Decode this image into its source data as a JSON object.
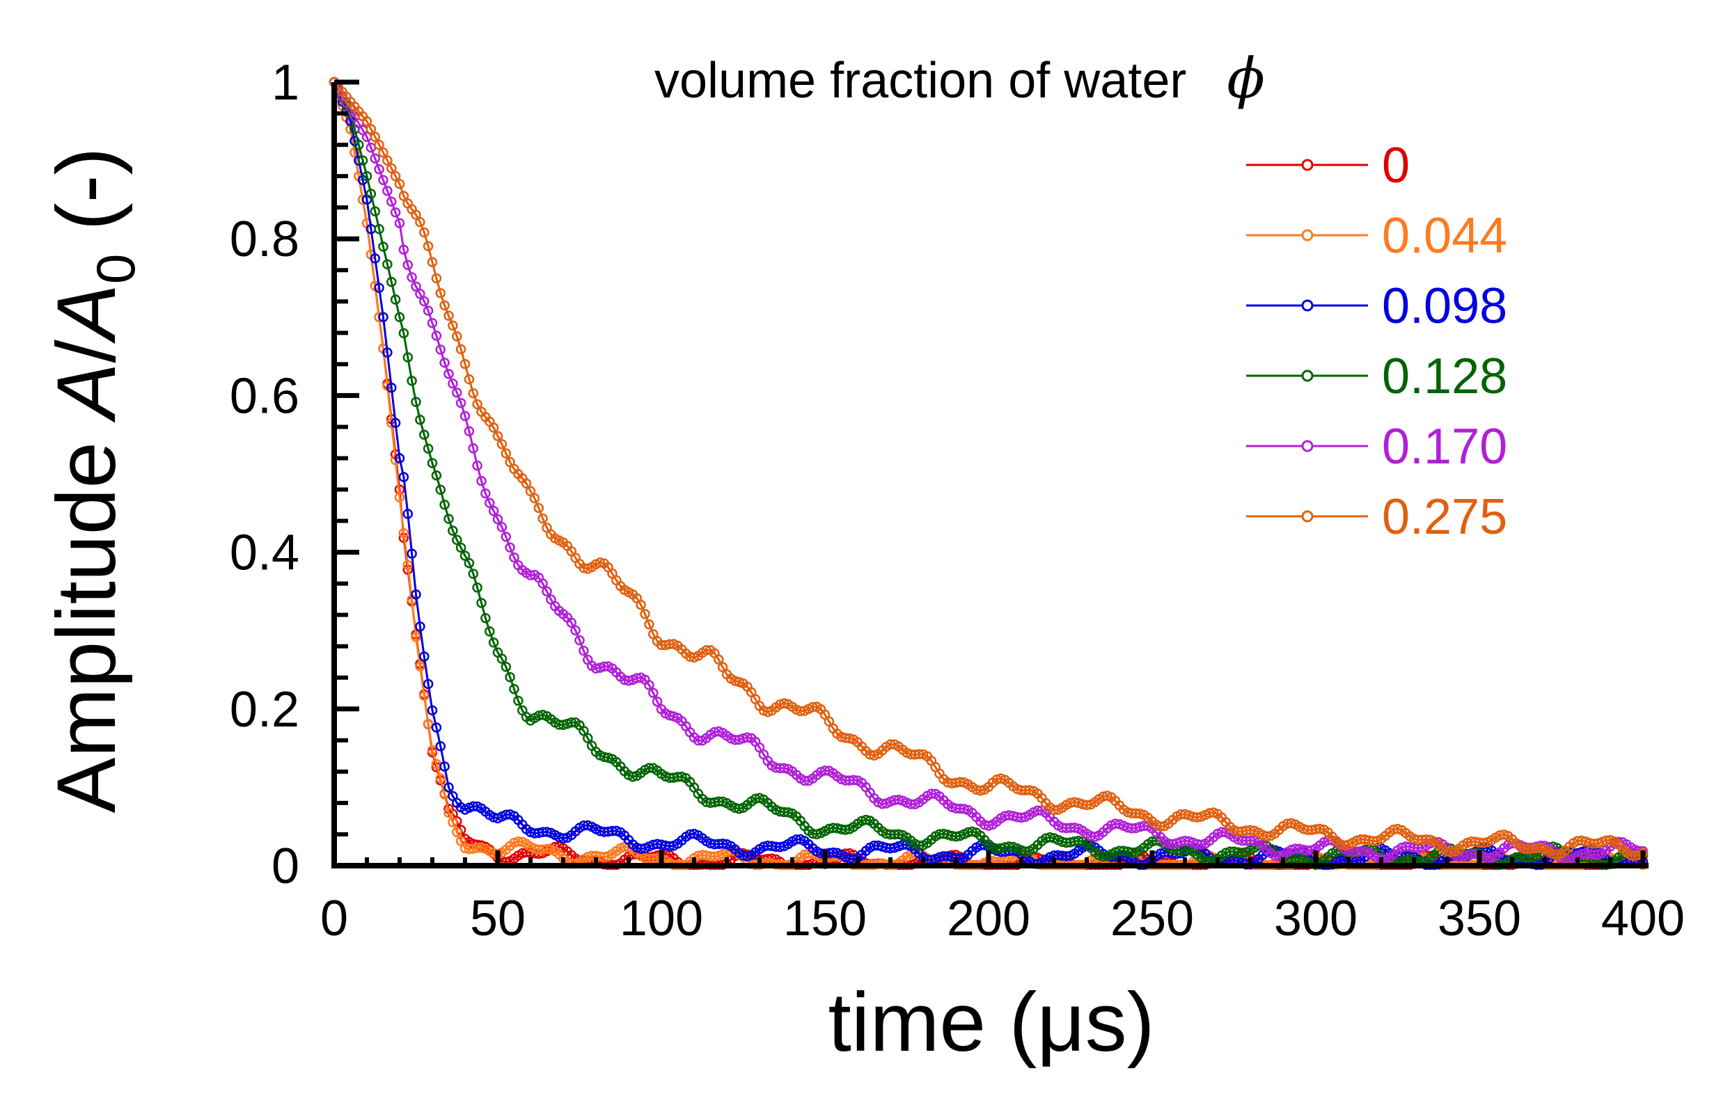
{
  "chart_data": {
    "type": "scatter",
    "title": "",
    "xlabel": "time (μs)",
    "ylabel_prefix": "Amplitude ",
    "ylabel_var": "A",
    "ylabel_slash": "/",
    "ylabel_var2": "A",
    "ylabel_sub": "0",
    "ylabel_suffix": " (-)",
    "xlim": [
      0,
      400
    ],
    "ylim": [
      0,
      1
    ],
    "xticks": [
      0,
      50,
      100,
      150,
      200,
      250,
      300,
      350,
      400
    ],
    "yticks": [
      0,
      0.2,
      0.4,
      0.6,
      0.8,
      1
    ],
    "ytick_labels": [
      "0",
      "0.2",
      "0.4",
      "0.6",
      "0.8",
      "1"
    ],
    "grid": false,
    "legend": {
      "position": "top-right",
      "title_text": "volume fraction of water",
      "title_symbol": "ϕ"
    },
    "series": [
      {
        "name": "0",
        "color": "#e00000",
        "decay": [
          [
            0,
            1.0
          ],
          [
            5,
            0.94
          ],
          [
            10,
            0.82
          ],
          [
            15,
            0.66
          ],
          [
            20,
            0.48
          ],
          [
            25,
            0.3
          ],
          [
            30,
            0.15
          ],
          [
            35,
            0.06
          ],
          [
            40,
            0.03
          ],
          [
            50,
            0.018
          ],
          [
            70,
            0.012
          ],
          [
            100,
            0.006
          ],
          [
            150,
            0.004
          ],
          [
            200,
            0.003
          ],
          [
            300,
            0.002
          ],
          [
            400,
            0.003
          ]
        ]
      },
      {
        "name": "0.044",
        "color": "#ff7a1f",
        "decay": [
          [
            0,
            1.0
          ],
          [
            5,
            0.94
          ],
          [
            10,
            0.82
          ],
          [
            15,
            0.66
          ],
          [
            20,
            0.47
          ],
          [
            25,
            0.28
          ],
          [
            30,
            0.14
          ],
          [
            35,
            0.06
          ],
          [
            40,
            0.032
          ],
          [
            50,
            0.022
          ],
          [
            70,
            0.015
          ],
          [
            100,
            0.01
          ],
          [
            150,
            0.006
          ],
          [
            200,
            0.004
          ],
          [
            300,
            0.003
          ],
          [
            400,
            0.004
          ]
        ]
      },
      {
        "name": "0.098",
        "color": "#0000e0",
        "decay": [
          [
            0,
            1.0
          ],
          [
            5,
            0.95
          ],
          [
            10,
            0.85
          ],
          [
            15,
            0.7
          ],
          [
            20,
            0.52
          ],
          [
            25,
            0.34
          ],
          [
            30,
            0.2
          ],
          [
            35,
            0.11
          ],
          [
            40,
            0.08
          ],
          [
            50,
            0.055
          ],
          [
            70,
            0.045
          ],
          [
            100,
            0.03
          ],
          [
            150,
            0.02
          ],
          [
            200,
            0.015
          ],
          [
            300,
            0.01
          ],
          [
            400,
            0.012
          ]
        ]
      },
      {
        "name": "0.128",
        "color": "#006400",
        "decay": [
          [
            0,
            1.0
          ],
          [
            5,
            0.96
          ],
          [
            10,
            0.88
          ],
          [
            20,
            0.7
          ],
          [
            30,
            0.52
          ],
          [
            40,
            0.38
          ],
          [
            50,
            0.27
          ],
          [
            60,
            0.2
          ],
          [
            80,
            0.15
          ],
          [
            100,
            0.11
          ],
          [
            120,
            0.085
          ],
          [
            150,
            0.05
          ],
          [
            200,
            0.03
          ],
          [
            250,
            0.02
          ],
          [
            300,
            0.012
          ],
          [
            400,
            0.012
          ]
        ]
      },
      {
        "name": "0.170",
        "color": "#b020d8",
        "decay": [
          [
            0,
            1.0
          ],
          [
            10,
            0.93
          ],
          [
            20,
            0.82
          ],
          [
            30,
            0.68
          ],
          [
            40,
            0.56
          ],
          [
            50,
            0.45
          ],
          [
            60,
            0.36
          ],
          [
            80,
            0.27
          ],
          [
            100,
            0.2
          ],
          [
            120,
            0.16
          ],
          [
            150,
            0.11
          ],
          [
            180,
            0.08
          ],
          [
            200,
            0.065
          ],
          [
            250,
            0.04
          ],
          [
            300,
            0.02
          ],
          [
            400,
            0.018
          ]
        ]
      },
      {
        "name": "0.275",
        "color": "#e06010",
        "decay": [
          [
            0,
            1.0
          ],
          [
            10,
            0.95
          ],
          [
            20,
            0.87
          ],
          [
            30,
            0.76
          ],
          [
            40,
            0.65
          ],
          [
            50,
            0.54
          ],
          [
            60,
            0.46
          ],
          [
            80,
            0.38
          ],
          [
            100,
            0.3
          ],
          [
            120,
            0.24
          ],
          [
            150,
            0.18
          ],
          [
            180,
            0.13
          ],
          [
            200,
            0.1
          ],
          [
            250,
            0.065
          ],
          [
            300,
            0.04
          ],
          [
            350,
            0.028
          ],
          [
            400,
            0.022
          ]
        ]
      }
    ]
  }
}
